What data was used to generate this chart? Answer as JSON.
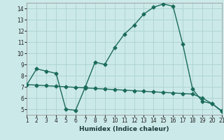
{
  "xlabel": "Humidex (Indice chaleur)",
  "ylabel": "",
  "background_color": "#cce9e9",
  "grid_color": "#afd4d4",
  "line_color": "#1a6b5a",
  "xlim": [
    1,
    21
  ],
  "ylim": [
    4.5,
    14.5
  ],
  "yticks": [
    5,
    6,
    7,
    8,
    9,
    10,
    11,
    12,
    13,
    14
  ],
  "xticks": [
    1,
    2,
    3,
    4,
    5,
    6,
    7,
    8,
    9,
    10,
    11,
    12,
    13,
    14,
    15,
    16,
    17,
    18,
    19,
    20,
    21
  ],
  "series1_x": [
    1,
    2,
    3,
    4,
    5,
    6,
    7,
    8,
    9,
    10,
    11,
    12,
    13,
    14,
    15,
    16,
    17,
    18,
    19,
    20,
    21
  ],
  "series1_y": [
    7.2,
    8.6,
    8.4,
    8.2,
    5.0,
    4.9,
    7.0,
    9.2,
    9.0,
    10.5,
    11.7,
    12.5,
    13.5,
    14.1,
    14.4,
    14.2,
    10.8,
    6.8,
    5.7,
    5.5,
    4.8
  ],
  "series2_x": [
    1,
    2,
    3,
    4,
    5,
    6,
    7,
    8,
    9,
    10,
    11,
    12,
    13,
    14,
    15,
    16,
    17,
    18,
    19,
    20,
    21
  ],
  "series2_y": [
    7.2,
    7.15,
    7.1,
    7.05,
    7.0,
    6.95,
    6.9,
    6.85,
    6.8,
    6.75,
    6.7,
    6.65,
    6.6,
    6.55,
    6.5,
    6.45,
    6.4,
    6.35,
    6.0,
    5.5,
    4.85
  ],
  "marker": "D",
  "markersize": 2.5,
  "linewidth": 1.0
}
